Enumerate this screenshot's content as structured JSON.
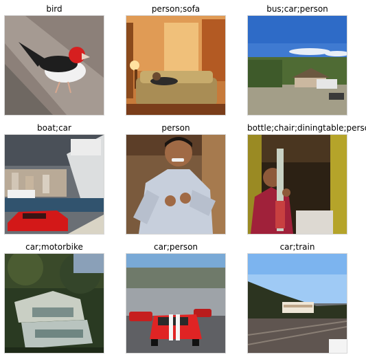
{
  "grid": {
    "items": [
      {
        "label": "bird",
        "image": "red-crested bird standing on stone"
      },
      {
        "label": "person;sofa",
        "image": "person lying on a sofa in a warm-lit room"
      },
      {
        "label": "bus;car;person",
        "image": "landscape with hut, bus and car under blue sky"
      },
      {
        "label": "boat;car",
        "image": "red sports car near harbor with large ship"
      },
      {
        "label": "person",
        "image": "smiling boy in grey hoodie"
      },
      {
        "label": "bottle;chair;diningtable;person",
        "image": "man in red shirt holding bottles at a table"
      },
      {
        "label": "car;motorbike",
        "image": "stacked wrecked vehicles under trees"
      },
      {
        "label": "car;person",
        "image": "red sports car with stripes on a race track"
      },
      {
        "label": "car;train",
        "image": "train on rail tracks under clear sky"
      }
    ]
  }
}
